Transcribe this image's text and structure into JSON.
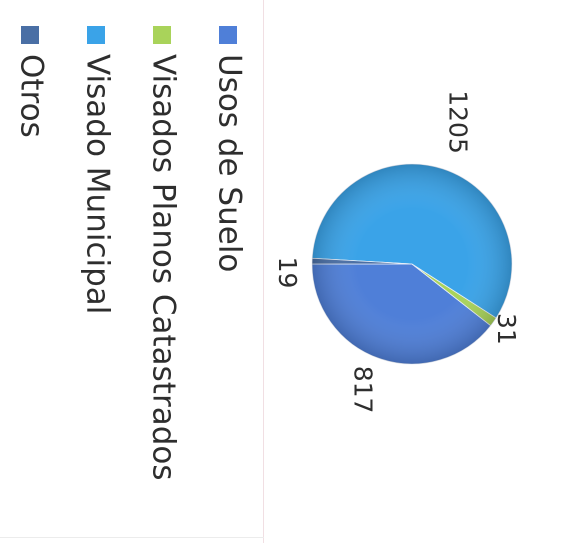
{
  "chart_data": {
    "type": "pie",
    "orientation": "rotated 90 degrees clockwise",
    "title": "",
    "categories": [
      "Usos de Suelo",
      "Visados Planos Catastrados",
      "Visado Municipal",
      "Otros"
    ],
    "values": [
      817,
      31,
      1205,
      19
    ],
    "value_labels": [
      "817",
      "31",
      "1205",
      "19"
    ],
    "colors": [
      "#4f7fd8",
      "#a9d35a",
      "#3aa3e8",
      "#4a6fa5"
    ],
    "legend_placement": "right",
    "grid": false
  }
}
